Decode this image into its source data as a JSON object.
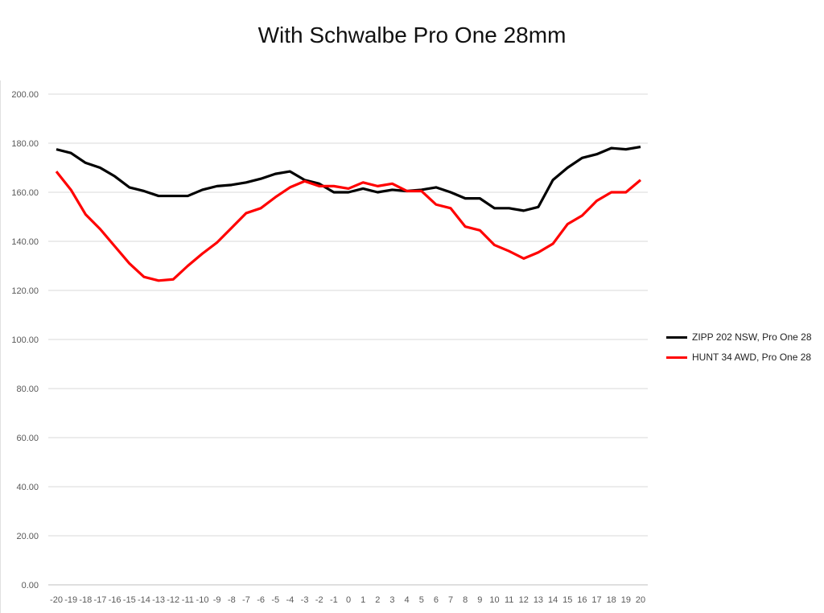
{
  "chart_data": {
    "type": "line",
    "title": "With Schwalbe Pro One 28mm",
    "xlabel": "",
    "ylabel": "",
    "x": [
      -20,
      -19,
      -18,
      -17,
      -16,
      -15,
      -14,
      -13,
      -12,
      -11,
      -10,
      -9,
      -8,
      -7,
      -6,
      -5,
      -4,
      -3,
      -2,
      -1,
      0,
      1,
      2,
      3,
      4,
      5,
      6,
      7,
      8,
      9,
      10,
      11,
      12,
      13,
      14,
      15,
      16,
      17,
      18,
      19,
      20
    ],
    "ylim": [
      0,
      200
    ],
    "yticks": [
      "0.00",
      "20.00",
      "40.00",
      "60.00",
      "80.00",
      "100.00",
      "120.00",
      "140.00",
      "160.00",
      "180.00",
      "200.00"
    ],
    "grid": true,
    "legend_position": "right",
    "series": [
      {
        "name": "ZIPP 202 NSW, Pro One 28",
        "color": "#000000",
        "values": [
          177.5,
          176,
          172,
          170,
          166.5,
          162,
          160.5,
          158.5,
          158.5,
          158.5,
          161,
          162.5,
          163,
          164,
          165.5,
          167.5,
          168.5,
          165,
          163.5,
          160,
          160,
          161.5,
          160,
          161,
          160.5,
          161,
          162,
          160,
          157.5,
          157.5,
          153.5,
          153.5,
          152.5,
          154,
          165,
          170,
          174,
          175.5,
          178,
          177.5,
          178.5
        ]
      },
      {
        "name": "HUNT 34 AWD, Pro One 28",
        "color": "#ff0000",
        "values": [
          168.5,
          161,
          151,
          145,
          138,
          131,
          125.5,
          124,
          124.5,
          130,
          135,
          139.5,
          145.5,
          151.5,
          153.5,
          158,
          162,
          164.5,
          162.5,
          162.5,
          161.5,
          164,
          162.5,
          163.5,
          160.5,
          160.5,
          155,
          153.5,
          146,
          144.5,
          138.5,
          136,
          133,
          135.5,
          139,
          147,
          150.5,
          156.5,
          160,
          160,
          165
        ]
      }
    ]
  }
}
